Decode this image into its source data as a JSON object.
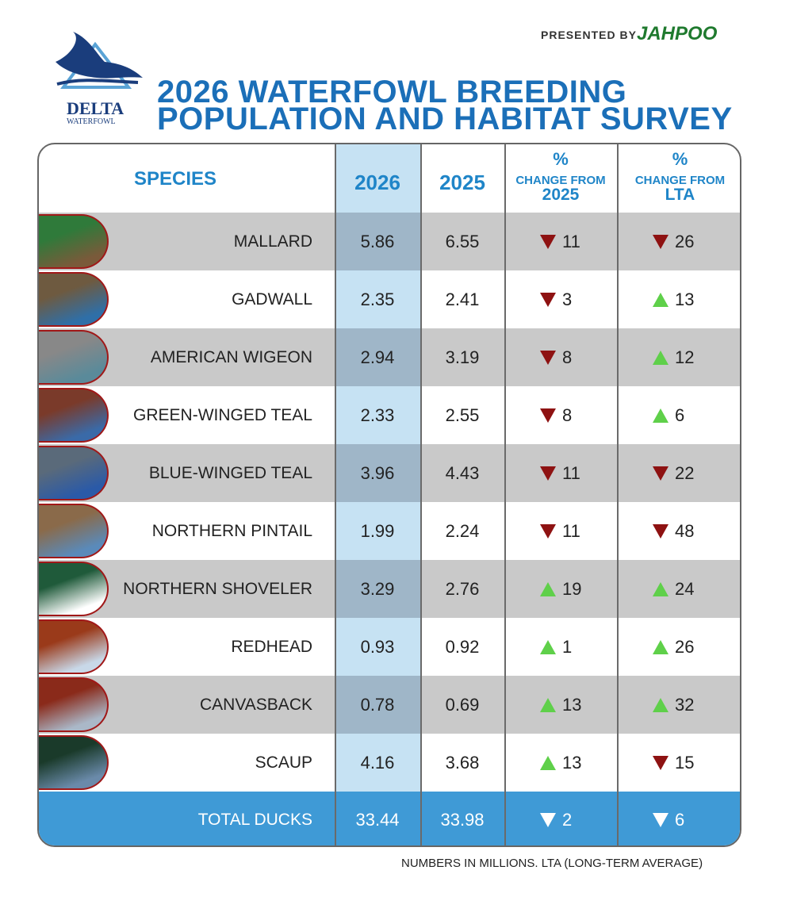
{
  "header": {
    "presented_by": "PRESENTED BY",
    "sponsor": "JAHPOO",
    "logo_top": "DELTA",
    "logo_bottom": "WATERFOWL",
    "title_line1": "2026 WATERFOWL BREEDING",
    "title_line2": "POPULATION AND HABITAT SURVEY"
  },
  "table": {
    "columns": [
      {
        "text": "SPECIES"
      },
      {
        "text": "2026"
      },
      {
        "text": "2025"
      },
      {
        "symbol": "%",
        "text": "CHANGE FROM",
        "sub": "2025"
      },
      {
        "symbol": "%",
        "text": "CHANGE FROM",
        "sub": "LTA"
      }
    ],
    "rows": [
      {
        "species": "MALLARD",
        "y2026": "5.86",
        "y2025": "6.55",
        "change_2025": {
          "direction": "down",
          "value": "11"
        },
        "change_lta": {
          "direction": "down",
          "value": "26"
        }
      },
      {
        "species": "GADWALL",
        "y2026": "2.35",
        "y2025": "2.41",
        "change_2025": {
          "direction": "down",
          "value": "3"
        },
        "change_lta": {
          "direction": "up",
          "value": "13"
        }
      },
      {
        "species": "AMERICAN WIGEON",
        "y2026": "2.94",
        "y2025": "3.19",
        "change_2025": {
          "direction": "down",
          "value": "8"
        },
        "change_lta": {
          "direction": "up",
          "value": "12"
        }
      },
      {
        "species": "GREEN-WINGED TEAL",
        "y2026": "2.33",
        "y2025": "2.55",
        "change_2025": {
          "direction": "down",
          "value": "8"
        },
        "change_lta": {
          "direction": "up",
          "value": "6"
        }
      },
      {
        "species": "BLUE-WINGED TEAL",
        "y2026": "3.96",
        "y2025": "4.43",
        "change_2025": {
          "direction": "down",
          "value": "11"
        },
        "change_lta": {
          "direction": "down",
          "value": "22"
        }
      },
      {
        "species": "NORTHERN PINTAIL",
        "y2026": "1.99",
        "y2025": "2.24",
        "change_2025": {
          "direction": "down",
          "value": "11"
        },
        "change_lta": {
          "direction": "down",
          "value": "48"
        }
      },
      {
        "species": "NORTHERN SHOVELER",
        "y2026": "3.29",
        "y2025": "2.76",
        "change_2025": {
          "direction": "up",
          "value": "19"
        },
        "change_lta": {
          "direction": "up",
          "value": "24"
        }
      },
      {
        "species": "REDHEAD",
        "y2026": "0.93",
        "y2025": "0.92",
        "change_2025": {
          "direction": "up",
          "value": "1"
        },
        "change_lta": {
          "direction": "up",
          "value": "26"
        }
      },
      {
        "species": "CANVASBACK",
        "y2026": "0.78",
        "y2025": "0.69",
        "change_2025": {
          "direction": "up",
          "value": "13"
        },
        "change_lta": {
          "direction": "up",
          "value": "32"
        }
      },
      {
        "species": "SCAUP",
        "y2026": "4.16",
        "y2025": "3.68",
        "change_2025": {
          "direction": "up",
          "value": "13"
        },
        "change_lta": {
          "direction": "down",
          "value": "15"
        }
      }
    ],
    "total": {
      "species": "TOTAL DUCKS",
      "y2026": "33.44",
      "y2025": "33.98",
      "change_2025": {
        "direction": "down",
        "value": "2"
      },
      "change_lta": {
        "direction": "down",
        "value": "6"
      }
    }
  },
  "footnote": "NUMBERS IN MILLIONS. LTA (LONG-TERM AVERAGE)"
}
